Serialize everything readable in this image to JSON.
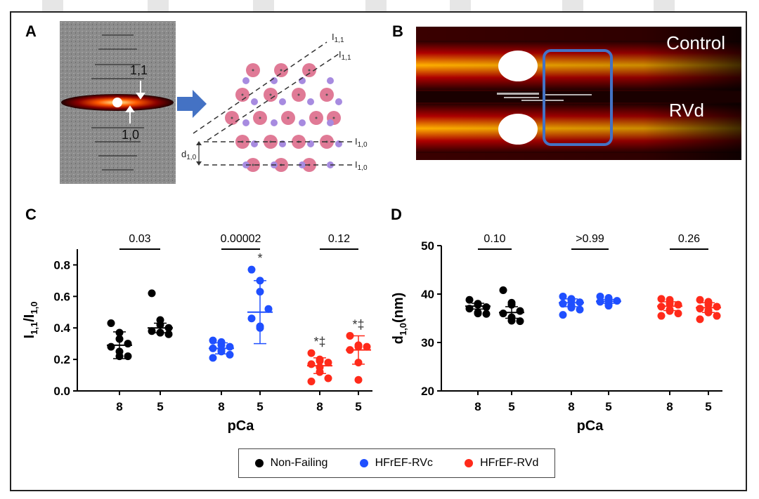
{
  "panels": {
    "a": {
      "label": "A",
      "pattern_labels": {
        "upper": "1,1",
        "lower": "1,0"
      },
      "lattice": {
        "d_label": "d",
        "d_sub": "1,0",
        "i_labels": [
          {
            "main": "I",
            "sub": "1,1"
          },
          {
            "main": "I",
            "sub": "1,1"
          },
          {
            "main": "I",
            "sub": "1,0"
          },
          {
            "main": "I",
            "sub": "1,0"
          }
        ]
      },
      "colors": {
        "thick_filament": "#e07a96",
        "thin_filament": "#a78be0",
        "arrow": "#4472c4"
      }
    },
    "b": {
      "label": "B",
      "top_label": "Control",
      "bottom_label": "RVd",
      "colors": {
        "highlight_box": "#4472c4"
      }
    }
  },
  "legend": [
    {
      "label": "Non-Failing",
      "color": "#000000"
    },
    {
      "label": "HFrEF-RVc",
      "color": "#1f4fff"
    },
    {
      "label": "HFrEF-RVd",
      "color": "#ff2a1a"
    }
  ],
  "chart_data": [
    {
      "panel": "C",
      "type": "scatter",
      "ylabel_main": "I",
      "ylabel_sub1": "1,1",
      "ylabel_div": "/I",
      "ylabel_sub2": "1,0",
      "xlabel": "pCa",
      "ylim": [
        0.0,
        0.9
      ],
      "yticks": [
        "0.0",
        "0.2",
        "0.4",
        "0.6",
        "0.8"
      ],
      "ytick_values": [
        0.0,
        0.2,
        0.4,
        0.6,
        0.8
      ],
      "categories": [
        "8",
        "5",
        "8",
        "5",
        "8",
        "5"
      ],
      "p_values": [
        "0.03",
        "0.00002",
        "0.12"
      ],
      "series": [
        {
          "name": "Non-Failing",
          "color": "#000000",
          "groups": [
            {
              "x": "8",
              "mean": 0.29,
              "sd": 0.085,
              "annotation": "",
              "points": [
                0.43,
                0.37,
                0.33,
                0.3,
                0.28,
                0.25,
                0.22,
                0.22
              ]
            },
            {
              "x": "5",
              "mean": 0.4,
              "sd": 0.03,
              "annotation": "",
              "points": [
                0.62,
                0.45,
                0.42,
                0.4,
                0.38,
                0.37,
                0.37,
                0.36
              ]
            }
          ]
        },
        {
          "name": "HFrEF-RVc",
          "color": "#1f4fff",
          "groups": [
            {
              "x": "8",
              "mean": 0.27,
              "sd": 0.035,
              "annotation": "",
              "points": [
                0.32,
                0.31,
                0.29,
                0.28,
                0.27,
                0.26,
                0.25,
                0.23,
                0.21
              ]
            },
            {
              "x": "5",
              "mean": 0.5,
              "sd": 0.2,
              "annotation": "*",
              "points": [
                0.77,
                0.7,
                0.63,
                0.52,
                0.46,
                0.41,
                0.4
              ]
            }
          ]
        },
        {
          "name": "HFrEF-RVd",
          "color": "#ff2a1a",
          "groups": [
            {
              "x": "8",
              "mean": 0.16,
              "sd": 0.05,
              "annotation": "*‡",
              "points": [
                0.24,
                0.2,
                0.19,
                0.18,
                0.17,
                0.15,
                0.12,
                0.08,
                0.06
              ]
            },
            {
              "x": "5",
              "mean": 0.26,
              "sd": 0.09,
              "annotation": "*‡",
              "points": [
                0.35,
                0.29,
                0.28,
                0.28,
                0.26,
                0.18,
                0.07
              ]
            }
          ]
        }
      ]
    },
    {
      "panel": "D",
      "type": "scatter",
      "ylabel_main": "d",
      "ylabel_sub1": "1,0",
      "ylabel_div": "(nm)",
      "ylabel_sub2": "",
      "xlabel": "pCa",
      "ylim": [
        20,
        50
      ],
      "yticks": [
        "20",
        "30",
        "40",
        "50"
      ],
      "ytick_values": [
        20,
        30,
        40,
        50
      ],
      "categories": [
        "8",
        "5",
        "8",
        "5",
        "8",
        "5"
      ],
      "p_values": [
        "0.10",
        ">0.99",
        "0.26"
      ],
      "series": [
        {
          "name": "Non-Failing",
          "color": "#000000",
          "groups": [
            {
              "x": "8",
              "mean": 37.5,
              "sd": 0.6,
              "annotation": "",
              "points": [
                38.8,
                38.0,
                37.8,
                37.3,
                37.0,
                36.2,
                36.0,
                35.9
              ]
            },
            {
              "x": "5",
              "mean": 36.2,
              "sd": 1.2,
              "annotation": "",
              "points": [
                40.8,
                38.2,
                37.8,
                36.5,
                36.0,
                35.2,
                34.5,
                34.4
              ]
            }
          ]
        },
        {
          "name": "HFrEF-RVc",
          "color": "#1f4fff",
          "groups": [
            {
              "x": "8",
              "mean": 38.2,
              "sd": 0.8,
              "annotation": "",
              "points": [
                39.5,
                39.0,
                38.7,
                38.3,
                38.0,
                37.6,
                37.2,
                36.8,
                35.7
              ]
            },
            {
              "x": "5",
              "mean": 38.5,
              "sd": 0.4,
              "annotation": "",
              "points": [
                39.5,
                39.2,
                38.8,
                38.6,
                38.4,
                38.0,
                37.6
              ]
            }
          ]
        },
        {
          "name": "HFrEF-RVd",
          "color": "#ff2a1a",
          "groups": [
            {
              "x": "8",
              "mean": 37.5,
              "sd": 0.9,
              "annotation": "",
              "points": [
                39.0,
                38.8,
                38.0,
                37.8,
                37.4,
                36.8,
                36.5,
                36.0,
                35.5
              ]
            },
            {
              "x": "5",
              "mean": 37.2,
              "sd": 1.0,
              "annotation": "",
              "points": [
                38.8,
                38.4,
                37.8,
                37.4,
                37.0,
                36.6,
                36.2,
                35.5,
                34.8
              ]
            }
          ]
        }
      ]
    }
  ]
}
